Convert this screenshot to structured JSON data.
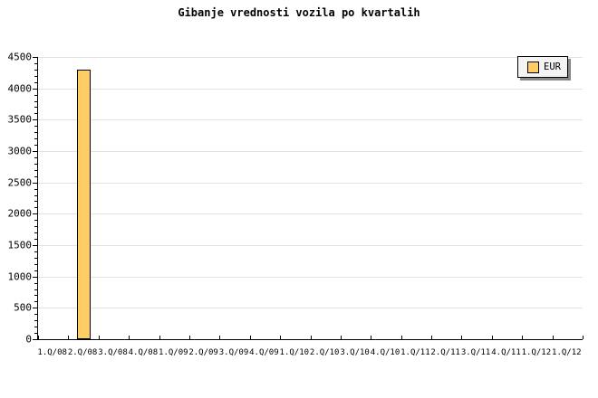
{
  "title": "Gibanje vrednosti vozila po kvartalih",
  "legend": {
    "label": "EUR",
    "swatch_color": "#ffcc66",
    "box_color": "#f4f4f4",
    "shadow_color": "#888888"
  },
  "colors": {
    "bar_fill": "#ffcc66",
    "bar_border": "#000000",
    "grid": "#e2e2e2",
    "axis": "#000000",
    "background": "#ffffff"
  },
  "chart_data": {
    "type": "bar",
    "title": "Gibanje vrednosti vozila po kvartalih",
    "categories": [
      "1.Q/08",
      "2.Q/08",
      "3.Q/08",
      "4.Q/08",
      "1.Q/09",
      "2.Q/09",
      "3.Q/09",
      "4.Q/09",
      "1.Q/10",
      "2.Q/10",
      "3.Q/10",
      "4.Q/10",
      "1.Q/11",
      "2.Q/11",
      "3.Q/11",
      "4.Q/11",
      "1.Q/12",
      "1.Q/12"
    ],
    "series": [
      {
        "name": "EUR",
        "color": "#ffcc66",
        "values": [
          null,
          4300,
          null,
          null,
          null,
          null,
          null,
          null,
          null,
          null,
          null,
          null,
          null,
          null,
          null,
          null,
          null,
          null
        ]
      }
    ],
    "xlabel": "",
    "ylabel": "",
    "ylim": [
      0,
      4500
    ],
    "y_major_step": 500,
    "y_minor_step": 100,
    "y_tick_labels": [
      "0",
      "500",
      "1000",
      "1500",
      "2000",
      "2500",
      "3000",
      "3500",
      "4000",
      "4500"
    ],
    "grid": "horizontal-major",
    "legend_position": "top-right",
    "legend_entries": [
      "EUR"
    ]
  }
}
